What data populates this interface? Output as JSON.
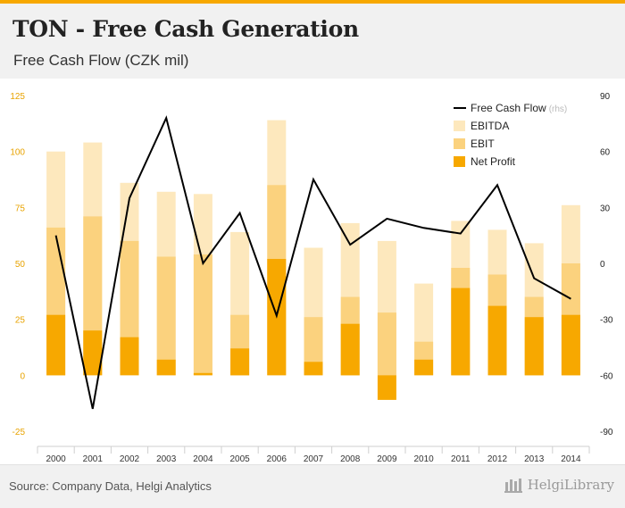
{
  "header": {
    "title": "TON - Free Cash Generation",
    "subtitle": "Free Cash Flow (CZK mil)"
  },
  "footer": {
    "source": "Source: Company Data, Helgi Analytics",
    "brand": "HelgiLibrary"
  },
  "colors": {
    "net_profit": "#f7a800",
    "ebit": "#fbd27e",
    "ebitda": "#fde8bd",
    "fcf_line": "#000000",
    "left_tick": "#e8a300",
    "right_tick": "#222222"
  },
  "chart_data": {
    "type": "bar",
    "title": "TON - Free Cash Generation",
    "subtitle": "Free Cash Flow (CZK mil)",
    "categories": [
      "2000",
      "2001",
      "2002",
      "2003",
      "2004",
      "2005",
      "2006",
      "2007",
      "2008",
      "2009",
      "2010",
      "2011",
      "2012",
      "2013",
      "2014"
    ],
    "series": [
      {
        "name": "EBITDA",
        "axis": "left",
        "values": [
          100,
          104,
          86,
          82,
          81,
          64,
          114,
          57,
          68,
          60,
          41,
          69,
          65,
          59,
          76
        ]
      },
      {
        "name": "EBIT",
        "axis": "left",
        "values": [
          66,
          71,
          60,
          53,
          54,
          27,
          85,
          26,
          35,
          28,
          15,
          48,
          45,
          35,
          50
        ]
      },
      {
        "name": "Net Profit",
        "axis": "left",
        "values": [
          27,
          20,
          17,
          7,
          1,
          12,
          52,
          6,
          23,
          -11,
          7,
          39,
          31,
          26,
          27
        ]
      },
      {
        "name": "Free Cash Flow",
        "suffix": "(rhs)",
        "type": "line",
        "axis": "right",
        "values": [
          15,
          -78,
          35,
          78,
          0,
          27,
          -28,
          45,
          10,
          24,
          19,
          16,
          42,
          -8,
          -19
        ]
      }
    ],
    "left_axis": {
      "ylim": [
        -25,
        125
      ],
      "ticks": [
        "-25",
        "0",
        "25",
        "50",
        "75",
        "100",
        "125"
      ],
      "tick_values": [
        -25,
        0,
        25,
        50,
        75,
        100,
        125
      ]
    },
    "right_axis": {
      "ylim": [
        -90,
        90
      ],
      "ticks": [
        "-90",
        "-60",
        "-30",
        "0",
        "30",
        "60",
        "90"
      ],
      "tick_values": [
        -90,
        -60,
        -30,
        0,
        30,
        60,
        90
      ]
    },
    "legend": {
      "placement": "top-right",
      "entries": [
        {
          "label": "Free Cash Flow",
          "suffix": "(rhs)",
          "key": "fcf_line"
        },
        {
          "label": "EBITDA",
          "key": "ebitda"
        },
        {
          "label": "EBIT",
          "key": "ebit"
        },
        {
          "label": "Net Profit",
          "key": "net_profit"
        }
      ]
    },
    "xlabel": "",
    "ylabel": "",
    "grid": false
  }
}
